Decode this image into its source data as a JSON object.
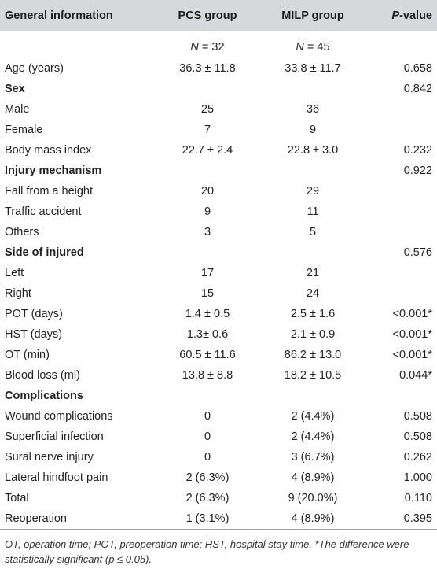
{
  "table": {
    "headers": {
      "col0": "General information",
      "col1": "PCS group",
      "col2": "MILP group",
      "col3_italic": "P",
      "col3_rest": "-value"
    },
    "n_row": {
      "pcs_n_label": "N",
      "pcs_n_value": " = 32",
      "milp_n_label": "N",
      "milp_n_value": " = 45"
    },
    "rows": [
      {
        "label": "Age (years)",
        "pcs": "36.3 ± 11.8",
        "milp": "33.8 ± 11.7",
        "p": "0.658",
        "bold": false
      },
      {
        "label": "Sex",
        "pcs": "",
        "milp": "",
        "p": "0.842",
        "bold": true
      },
      {
        "label": "Male",
        "pcs": "25",
        "milp": "36",
        "p": "",
        "bold": false
      },
      {
        "label": "Female",
        "pcs": "7",
        "milp": "9",
        "p": "",
        "bold": false
      },
      {
        "label": "Body mass index",
        "pcs": "22.7 ± 2.4",
        "milp": "22.8 ± 3.0",
        "p": "0.232",
        "bold": false
      },
      {
        "label": "Injury mechanism",
        "pcs": "",
        "milp": "",
        "p": "0.922",
        "bold": true
      },
      {
        "label": "Fall from a height",
        "pcs": "20",
        "milp": "29",
        "p": "",
        "bold": false
      },
      {
        "label": "Traffic accident",
        "pcs": "9",
        "milp": "11",
        "p": "",
        "bold": false
      },
      {
        "label": "Others",
        "pcs": "3",
        "milp": "5",
        "p": "",
        "bold": false
      },
      {
        "label": "Side of injured",
        "pcs": "",
        "milp": "",
        "p": "0.576",
        "bold": true
      },
      {
        "label": "Left",
        "pcs": "17",
        "milp": "21",
        "p": "",
        "bold": false
      },
      {
        "label": "Right",
        "pcs": "15",
        "milp": "24",
        "p": "",
        "bold": false
      },
      {
        "label": "POT (days)",
        "pcs": "1.4 ± 0.5",
        "milp": "2.5 ± 1.6",
        "p": "<0.001*",
        "bold": false
      },
      {
        "label": "HST (days)",
        "pcs": "1.3± 0.6",
        "milp": "2.1 ± 0.9",
        "p": "<0.001*",
        "bold": false
      },
      {
        "label": "OT (min)",
        "pcs": "60.5 ± 11.6",
        "milp": "86.2 ± 13.0",
        "p": "<0.001*",
        "bold": false
      },
      {
        "label": "Blood loss (ml)",
        "pcs": "13.8 ± 8.8",
        "milp": "18.2 ± 10.5",
        "p": "0.044*",
        "bold": false
      },
      {
        "label": "Complications",
        "pcs": "",
        "milp": "",
        "p": "",
        "bold": true
      },
      {
        "label": "Wound complications",
        "pcs": "0",
        "milp": "2 (4.4%)",
        "p": "0.508",
        "bold": false
      },
      {
        "label": "Superficial infection",
        "pcs": "0",
        "milp": "2 (4.4%)",
        "p": "0.508",
        "bold": false
      },
      {
        "label": "Sural nerve injury",
        "pcs": "0",
        "milp": "3 (6.7%)",
        "p": "0.262",
        "bold": false
      },
      {
        "label": "Lateral hindfoot pain",
        "pcs": "2 (6.3%)",
        "milp": "4 (8.9%)",
        "p": "1.000",
        "bold": false
      },
      {
        "label": "Total",
        "pcs": "2 (6.3%)",
        "milp": "9 (20.0%)",
        "p": "0.110",
        "bold": false
      },
      {
        "label": "Reoperation",
        "pcs": "1 (3.1%)",
        "milp": "4 (8.9%)",
        "p": "0.395",
        "bold": false
      }
    ]
  },
  "footnote": "OT, operation time; POT, preoperation time; HST, hospital stay time. *The difference were statistically significant (p ≤ 0.05)."
}
